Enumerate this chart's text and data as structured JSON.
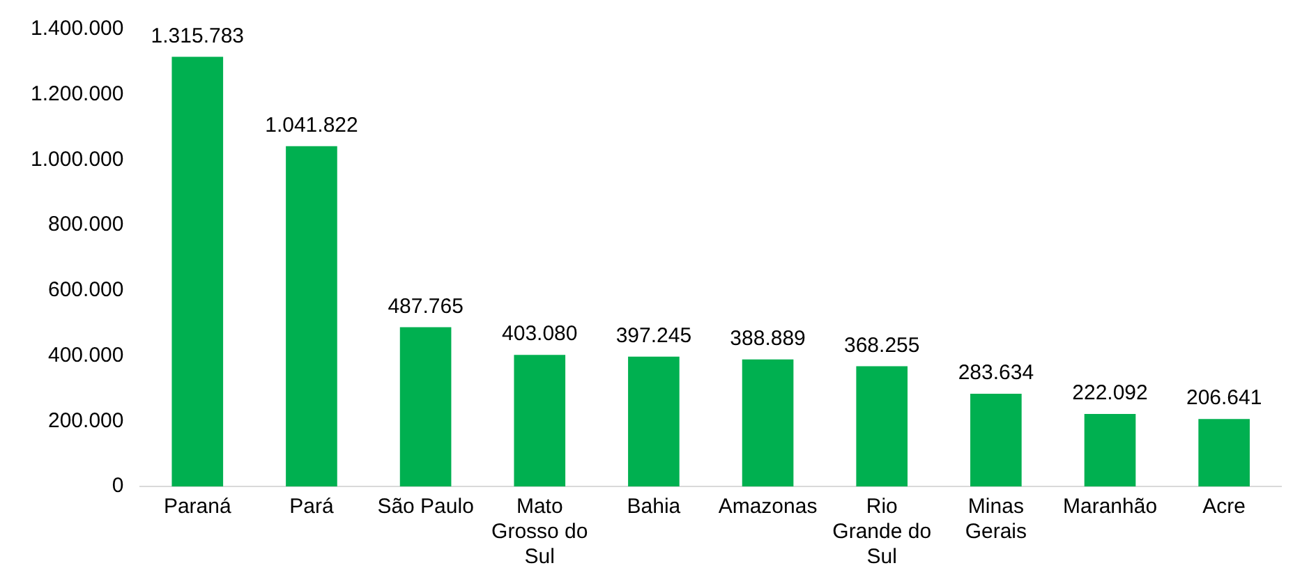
{
  "chart_data": {
    "type": "bar",
    "categories": [
      "Paraná",
      "Pará",
      "São Paulo",
      "Mato Grosso do Sul",
      "Bahia",
      "Amazonas",
      "Rio Grande do Sul",
      "Minas Gerais",
      "Maranhão",
      "Acre"
    ],
    "values": [
      1315783,
      1041822,
      487765,
      403080,
      397245,
      388889,
      368255,
      283634,
      222092,
      206641
    ],
    "value_labels": [
      "1.315.783",
      "1.041.822",
      "487.765",
      "403.080",
      "397.245",
      "388.889",
      "368.255",
      "283.634",
      "222.092",
      "206.641"
    ],
    "color": "#00b050",
    "ylim": [
      0,
      1400000
    ],
    "yticks": [
      {
        "value": 0,
        "label": "0"
      },
      {
        "value": 200000,
        "label": "200.000"
      },
      {
        "value": 400000,
        "label": "400.000"
      },
      {
        "value": 600000,
        "label": "600.000"
      },
      {
        "value": 800000,
        "label": "800.000"
      },
      {
        "value": 1000000,
        "label": "1.000.000"
      },
      {
        "value": 1200000,
        "label": "1.200.000"
      },
      {
        "value": 1400000,
        "label": "1.400.000"
      }
    ],
    "grid": false,
    "legend": false
  }
}
